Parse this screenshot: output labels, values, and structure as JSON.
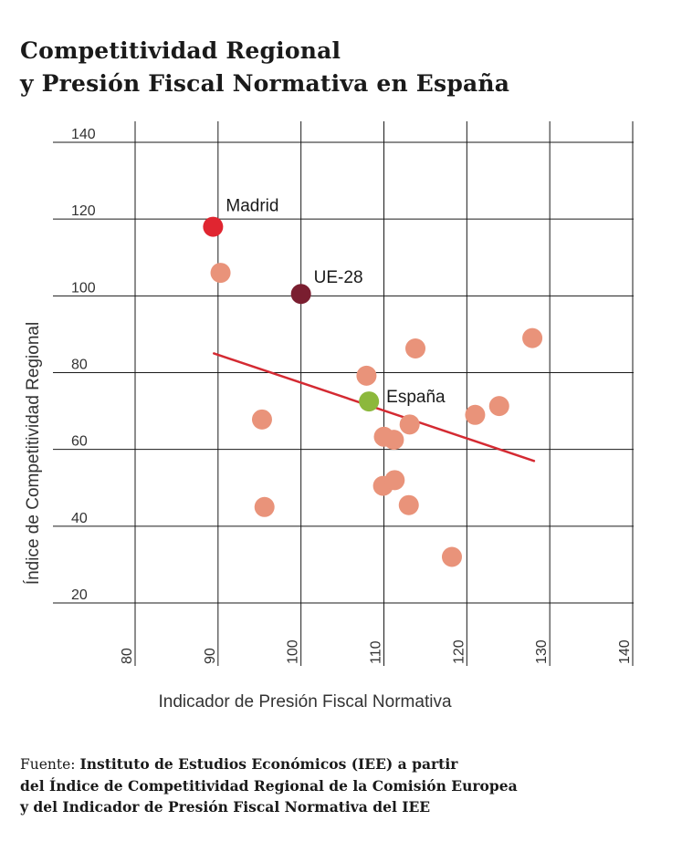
{
  "title": {
    "line1": "Competitividad Regional",
    "line2": "y Presión Fiscal Normativa en España"
  },
  "source": {
    "label": "Fuente:",
    "line1": "Instituto de Estudios Económicos (IEE) a partir",
    "line2": "del Índice de Competitividad Regional de la Comisión Europea",
    "line3": "y del Indicador de Presión Fiscal Normativa del IEE"
  },
  "chart_data": {
    "type": "scatter",
    "title": "Competitividad Regional y Presión Fiscal Normativa en España",
    "xlabel": "Indicador de Presión Fiscal Normativa",
    "ylabel": "Índice de Competitividad Regional",
    "xlim": [
      80,
      140
    ],
    "ylim": [
      20,
      140
    ],
    "x_ticks": [
      80,
      90,
      100,
      110,
      120,
      130,
      140
    ],
    "y_ticks": [
      20,
      40,
      60,
      80,
      100,
      120,
      140
    ],
    "grid": true,
    "colors": {
      "region": "#e9937a",
      "madrid": "#e02530",
      "ue28": "#7a1e30",
      "espana": "#8cb83c",
      "trend": "#d42a32",
      "grid": "#1a1a1a"
    },
    "points": [
      {
        "x": 89.4,
        "y": 118.0,
        "label": "Madrid",
        "kind": "madrid"
      },
      {
        "x": 100.0,
        "y": 100.5,
        "label": "UE-28",
        "kind": "ue28"
      },
      {
        "x": 108.2,
        "y": 72.5,
        "label": "España",
        "kind": "espana"
      },
      {
        "x": 90.3,
        "y": 106.0,
        "kind": "region"
      },
      {
        "x": 95.3,
        "y": 67.8,
        "kind": "region"
      },
      {
        "x": 95.6,
        "y": 45.0,
        "kind": "region"
      },
      {
        "x": 107.9,
        "y": 79.2,
        "kind": "region"
      },
      {
        "x": 113.8,
        "y": 86.3,
        "kind": "region"
      },
      {
        "x": 110.0,
        "y": 63.3,
        "kind": "region"
      },
      {
        "x": 111.2,
        "y": 62.5,
        "kind": "region"
      },
      {
        "x": 113.1,
        "y": 66.5,
        "kind": "region"
      },
      {
        "x": 109.9,
        "y": 50.5,
        "kind": "region"
      },
      {
        "x": 111.3,
        "y": 52.0,
        "kind": "region"
      },
      {
        "x": 113.0,
        "y": 45.5,
        "kind": "region"
      },
      {
        "x": 118.2,
        "y": 32.0,
        "kind": "region"
      },
      {
        "x": 121.0,
        "y": 69.0,
        "kind": "region"
      },
      {
        "x": 123.9,
        "y": 71.3,
        "kind": "region"
      },
      {
        "x": 127.9,
        "y": 89.0,
        "kind": "region"
      }
    ],
    "trendline": {
      "x": [
        89.5,
        128.1
      ],
      "y": [
        85.0,
        57.0
      ]
    }
  }
}
